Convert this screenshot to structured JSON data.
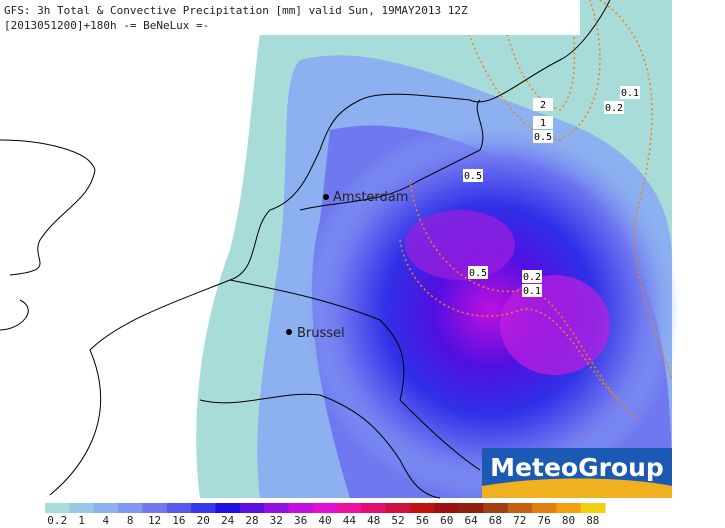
{
  "header": {
    "line1": "GFS: 3h Total & Convective Precipitation [mm] valid Sun, 19MAY2013 12Z",
    "line2": "[2013051200]+180h -= BeNeLux =-"
  },
  "cities": [
    {
      "label": "Amsterdam"
    },
    {
      "label": "Brussel"
    }
  ],
  "contour_labels": [
    "0.1",
    "0.2",
    "2",
    "1",
    "0.5",
    "0.5",
    "0.5",
    "0.2",
    "0.1"
  ],
  "logo": "MeteoGroup",
  "legend": [
    {
      "label": "0.2",
      "color": "#a8dcd8"
    },
    {
      "label": "1",
      "color": "#98c8e4"
    },
    {
      "label": "4",
      "color": "#8cb0f0"
    },
    {
      "label": "8",
      "color": "#8098f0"
    },
    {
      "label": "12",
      "color": "#7078f0"
    },
    {
      "label": "16",
      "color": "#5858f0"
    },
    {
      "label": "20",
      "color": "#3838ec"
    },
    {
      "label": "24",
      "color": "#2010e0"
    },
    {
      "label": "28",
      "color": "#5c10e0"
    },
    {
      "label": "32",
      "color": "#9010e0"
    },
    {
      "label": "36",
      "color": "#c010e0"
    },
    {
      "label": "40",
      "color": "#e010d0"
    },
    {
      "label": "44",
      "color": "#f010a0"
    },
    {
      "label": "48",
      "color": "#e01070"
    },
    {
      "label": "52",
      "color": "#d01040"
    },
    {
      "label": "56",
      "color": "#c01010"
    },
    {
      "label": "60",
      "color": "#a01010"
    },
    {
      "label": "64",
      "color": "#902010"
    },
    {
      "label": "68",
      "color": "#a04010"
    },
    {
      "label": "72",
      "color": "#c06010"
    },
    {
      "label": "76",
      "color": "#e08010"
    },
    {
      "label": "80",
      "color": "#f0a010"
    },
    {
      "label": "88",
      "color": "#f0d010"
    }
  ]
}
